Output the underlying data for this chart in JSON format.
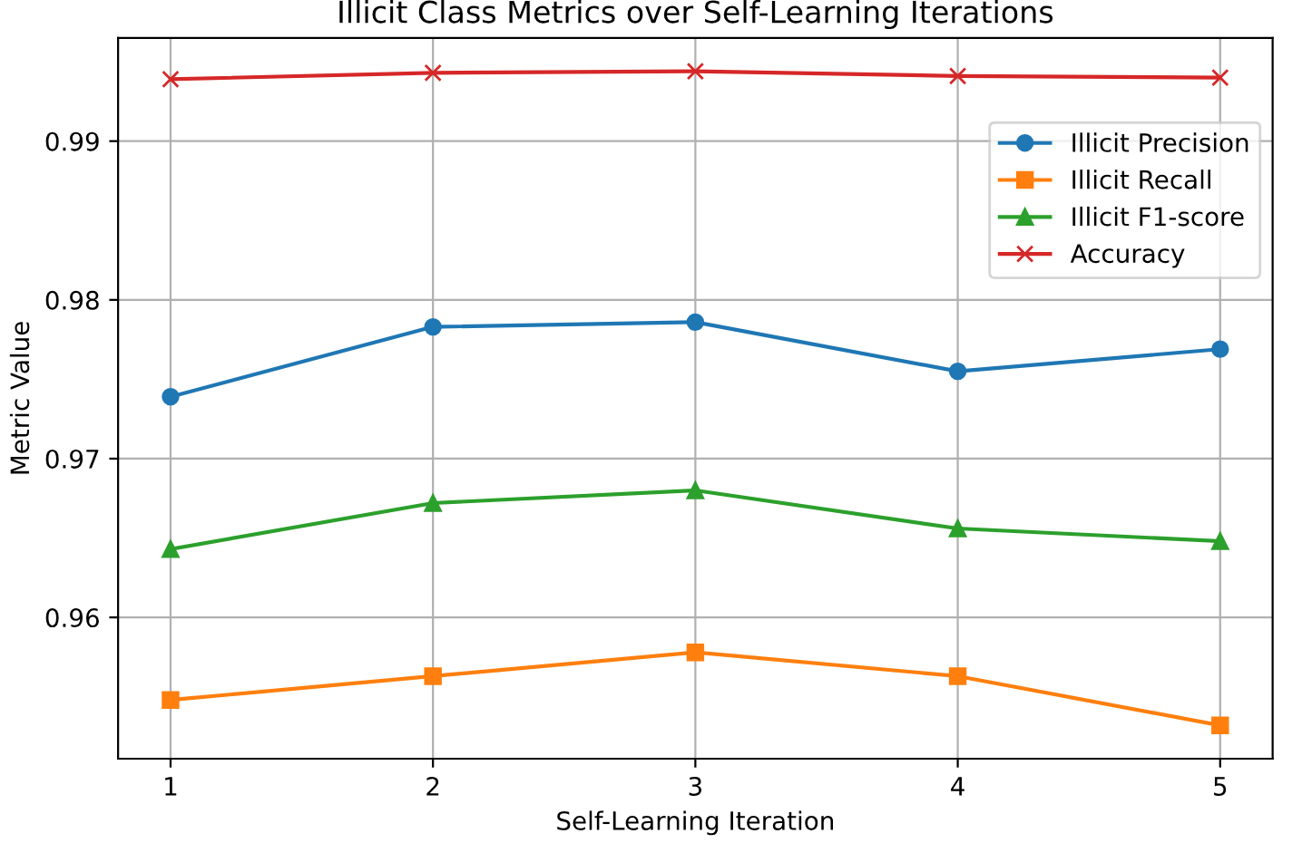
{
  "chart_data": {
    "type": "line",
    "title": "Illicit Class Metrics over Self-Learning Iterations",
    "xlabel": "Self-Learning Iteration",
    "ylabel": "Metric Value",
    "x": [
      1,
      2,
      3,
      4,
      5
    ],
    "series": [
      {
        "name": "Illicit Precision",
        "color": "#1f77b4",
        "marker": "circle",
        "values": [
          0.9739,
          0.9783,
          0.9786,
          0.9755,
          0.9769
        ]
      },
      {
        "name": "Illicit Recall",
        "color": "#ff7f0e",
        "marker": "square",
        "values": [
          0.9548,
          0.9563,
          0.9578,
          0.9563,
          0.9532
        ]
      },
      {
        "name": "Illicit F1-score",
        "color": "#2ca02c",
        "marker": "triangle",
        "values": [
          0.9643,
          0.9672,
          0.968,
          0.9656,
          0.9648
        ]
      },
      {
        "name": "Accuracy",
        "color": "#d62728",
        "marker": "cross",
        "values": [
          0.9939,
          0.9943,
          0.9944,
          0.9941,
          0.994
        ]
      }
    ],
    "xlim": [
      0.8,
      5.2
    ],
    "xticks": [
      1,
      2,
      3,
      4,
      5
    ],
    "ylim": [
      0.9511,
      0.9965
    ],
    "yticks": [
      {
        "value": 0.96,
        "label": "0.96"
      },
      {
        "value": 0.97,
        "label": "0.97"
      },
      {
        "value": 0.98,
        "label": "0.98"
      },
      {
        "value": 0.99,
        "label": "0.99"
      }
    ],
    "grid": true,
    "legend": "top right",
    "line_style": "solid"
  }
}
